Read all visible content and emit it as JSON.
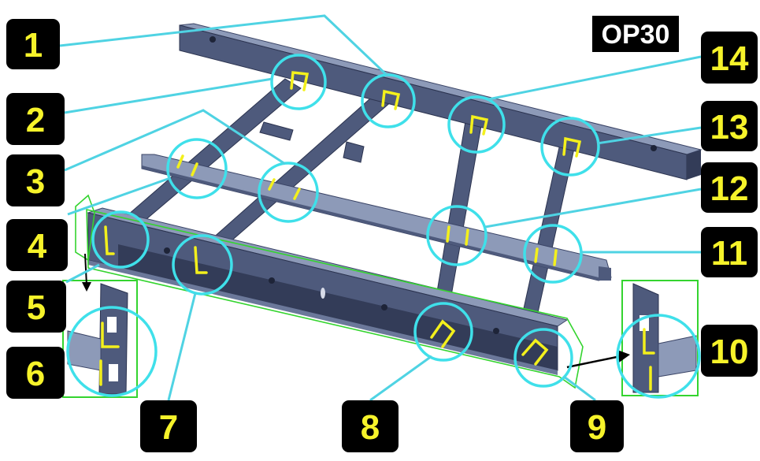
{
  "op_label": "OP30",
  "colors": {
    "leader": "#4fd3e3",
    "circle": "#3fe0ea",
    "weld": "#f3f01c",
    "frame": "#4e5a7c",
    "frame_dark": "#333c58",
    "frame_light": "#8d9ab8",
    "outline": "#34d42f",
    "badge_bg": "#000000",
    "badge_text": "#f6f32a"
  },
  "callouts": [
    "1",
    "2",
    "3",
    "4",
    "5",
    "6",
    "7",
    "8",
    "9",
    "10",
    "11",
    "12",
    "13",
    "14"
  ]
}
